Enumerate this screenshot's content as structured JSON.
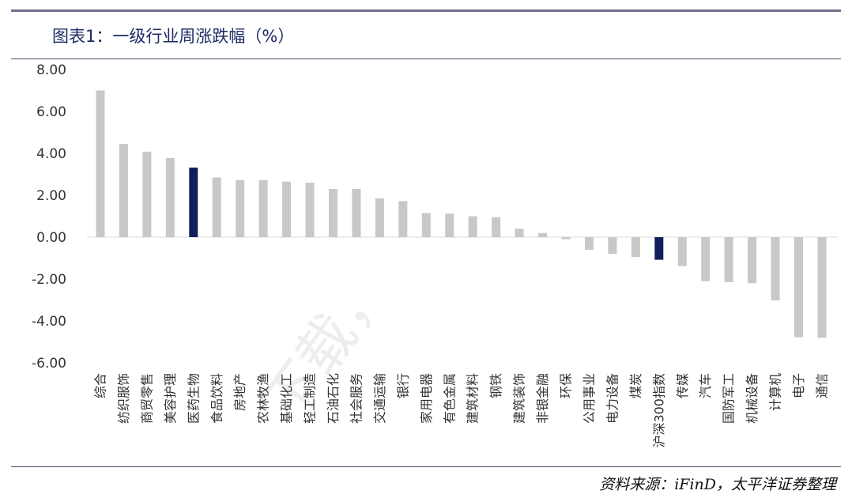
{
  "header": {
    "title": "图表1：一级行业周涨跌幅（%）"
  },
  "footer": {
    "source": "资料来源：iFinD，太平洋证券整理"
  },
  "colors": {
    "bar_default": "#c8c8c8",
    "bar_highlight": "#0e1f5c",
    "rule": "#4a4a6a"
  },
  "chart_data": {
    "type": "bar",
    "title": "",
    "xlabel": "",
    "ylabel": "",
    "ylim": [
      -6,
      8
    ],
    "yticks": [
      "8.00",
      "6.00",
      "4.00",
      "2.00",
      "0.00",
      "-2.00",
      "-4.00",
      "-6.00"
    ],
    "grid": false,
    "categories": [
      "综合",
      "纺织服饰",
      "商贸零售",
      "美容护理",
      "医药生物",
      "食品饮料",
      "房地产",
      "农林牧渔",
      "基础化工",
      "轻工制造",
      "石油石化",
      "社会服务",
      "交通运输",
      "银行",
      "家用电器",
      "有色金属",
      "建筑材料",
      "钢铁",
      "建筑装饰",
      "非银金融",
      "环保",
      "公用事业",
      "电力设备",
      "煤炭",
      "沪深300指数",
      "传媒",
      "汽车",
      "国防军工",
      "机械设备",
      "计算机",
      "电子",
      "通信"
    ],
    "values": [
      7.0,
      4.45,
      4.08,
      3.78,
      3.32,
      2.85,
      2.72,
      2.72,
      2.65,
      2.6,
      2.3,
      2.3,
      1.85,
      1.72,
      1.15,
      1.12,
      1.0,
      0.95,
      0.4,
      0.2,
      -0.1,
      -0.6,
      -0.8,
      -0.95,
      -1.08,
      -1.38,
      -2.1,
      -2.15,
      -2.2,
      -3.02,
      -4.78,
      -4.8
    ],
    "highlight": [
      "医药生物",
      "沪深300指数"
    ]
  }
}
